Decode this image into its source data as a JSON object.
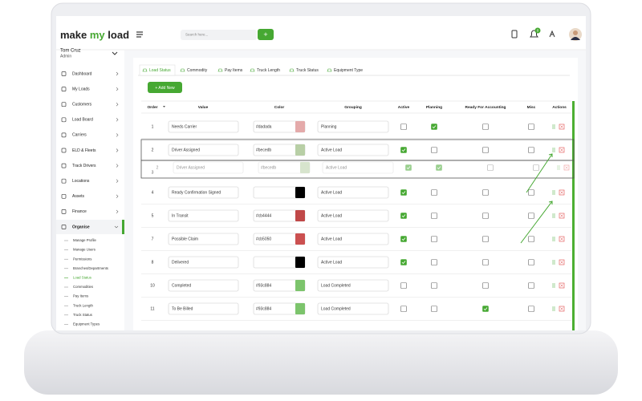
{
  "header": {
    "logo": [
      "make",
      "my",
      "load"
    ],
    "search_placeholder": "Search here...",
    "notification_count": "0"
  },
  "user": {
    "name": "Tom Cruz",
    "role": "Admin"
  },
  "sidebar": {
    "items": [
      "Dashboard",
      "My Loads",
      "Customers",
      "Load Board",
      "Carriers",
      "ELD & Fleets",
      "Track Drivers",
      "Locations",
      "Assets",
      "Finance",
      "Organise"
    ],
    "active_index": 10,
    "submenu": [
      "Manage Profile",
      "Manage Users",
      "Permissions",
      "Branches/Departments",
      "Load Status",
      "Commodities",
      "Pay Items",
      "Truck Length",
      "Truck Status",
      "Equipment Types"
    ],
    "active_sub_index": 4
  },
  "tabs": {
    "items": [
      "Load Status",
      "Commodity",
      "Pay Items",
      "Truck Length",
      "Truck Status",
      "Equipment Type"
    ],
    "active_index": 0
  },
  "add_button": "+ Add New",
  "table": {
    "columns": [
      "Order",
      "Value",
      "Color",
      "Grouping",
      "Active",
      "Planning",
      "Ready For Accounting",
      "Misc",
      "Actions"
    ],
    "rows": [
      {
        "order": 1,
        "value": "Needs Carrier",
        "color": "#dadada",
        "swatch": "#e4aaaa",
        "grouping": "Planning",
        "active": false,
        "planning": true,
        "ready": false,
        "misc": false
      },
      {
        "order": 2,
        "value": "Driver Assigned",
        "color": "#becedb",
        "swatch": "#b8cfa6",
        "grouping": "Active Load",
        "active": true,
        "planning": false,
        "ready": false,
        "misc": false,
        "dragged": true
      },
      {
        "order": 4,
        "value": "Ready Confirmation Signed",
        "color": null,
        "swatch": "#000000",
        "grouping": "Active Load",
        "active": true,
        "planning": false,
        "ready": false,
        "misc": false
      },
      {
        "order": 5,
        "value": "In Transit",
        "color": "#cb4444",
        "swatch": "#c04848",
        "grouping": "Active Load",
        "active": true,
        "planning": false,
        "ready": false,
        "misc": false
      },
      {
        "order": 7,
        "value": "Possible Claim",
        "color": "#cb5050",
        "swatch": "#cb5050",
        "grouping": "Active Load",
        "active": true,
        "planning": false,
        "ready": false,
        "misc": false
      },
      {
        "order": 8,
        "value": "Delivered",
        "color": null,
        "swatch": "#000000",
        "grouping": "Active Load",
        "active": true,
        "planning": false,
        "ready": false,
        "misc": false
      },
      {
        "order": 10,
        "value": "Completed",
        "color": "#93c884",
        "swatch": "#7cc46c",
        "grouping": "Load Completed",
        "active": false,
        "planning": false,
        "ready": false,
        "misc": false
      },
      {
        "order": 11,
        "value": "To Be Billed",
        "color": "#93c884",
        "swatch": "#7cc46c",
        "grouping": "Load Completed",
        "active": false,
        "planning": false,
        "ready": true,
        "misc": false
      }
    ],
    "ghost": {
      "order": 2,
      "under_order": 3,
      "value": "Driver Assigned",
      "color": "#becedb",
      "swatch": "#b8cfa6",
      "grouping": "Active Load",
      "active": true,
      "planning": true,
      "ready": false,
      "misc": false
    }
  }
}
